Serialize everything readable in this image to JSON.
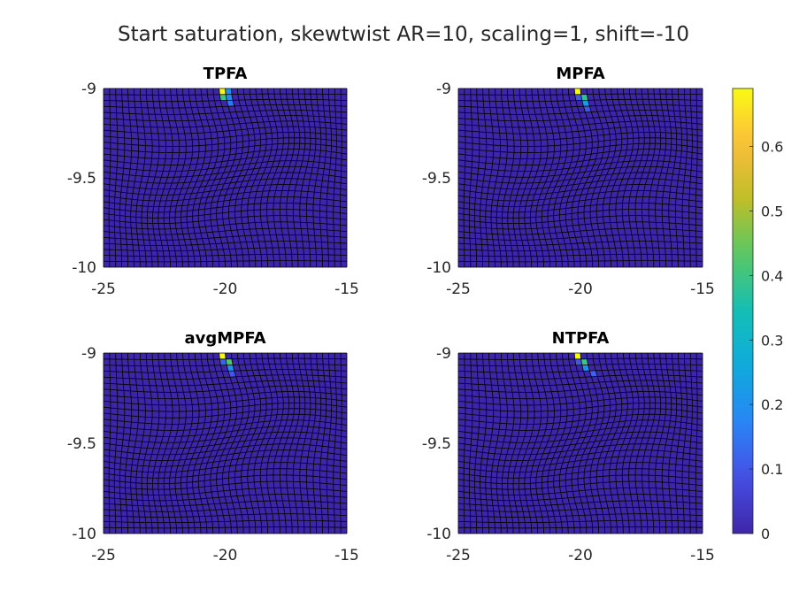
{
  "title": "Start saturation, skewtwist AR=10, scaling=1, shift=-10",
  "colors": {
    "background": "#ffffff",
    "cell_low": "#3e26a8",
    "grid_line": "#000000",
    "text": "#262626"
  },
  "chart_data": [
    {
      "type": "heatmap",
      "title": "TPFA",
      "xlim": [
        -25,
        -15
      ],
      "ylim": [
        -10,
        -9
      ],
      "xticks": [
        -25,
        -20,
        -15
      ],
      "yticks": [
        -9,
        -9.5,
        -10
      ],
      "grid": true,
      "colormap": "parula",
      "clim": [
        0,
        0.69
      ],
      "high_cells": [
        {
          "x": -20.15,
          "y": -9.01,
          "value": 0.69
        },
        {
          "x": -19.95,
          "y": -9.01,
          "value": 0.2
        },
        {
          "x": -20.05,
          "y": -9.05,
          "value": 0.4
        },
        {
          "x": -19.85,
          "y": -9.05,
          "value": 0.18
        },
        {
          "x": -19.85,
          "y": -9.09,
          "value": 0.15
        }
      ]
    },
    {
      "type": "heatmap",
      "title": "MPFA",
      "xlim": [
        -25,
        -15
      ],
      "ylim": [
        -10,
        -9
      ],
      "xticks": [
        -25,
        -20,
        -15
      ],
      "yticks": [
        -9,
        -9.5,
        -10
      ],
      "grid": true,
      "colormap": "parula",
      "clim": [
        0,
        0.69
      ],
      "high_cells": [
        {
          "x": -20.15,
          "y": -9.01,
          "value": 0.69
        },
        {
          "x": -19.95,
          "y": -9.05,
          "value": 0.38
        },
        {
          "x": -20.1,
          "y": -9.05,
          "value": 0.1
        },
        {
          "x": -19.85,
          "y": -9.09,
          "value": 0.22
        },
        {
          "x": -19.8,
          "y": -9.13,
          "value": 0.1
        }
      ]
    },
    {
      "type": "heatmap",
      "title": "avgMPFA",
      "xlim": [
        -25,
        -15
      ],
      "ylim": [
        -10,
        -9
      ],
      "xticks": [
        -25,
        -20,
        -15
      ],
      "yticks": [
        -9,
        -9.5,
        -10
      ],
      "grid": true,
      "colormap": "parula",
      "clim": [
        0,
        0.69
      ],
      "high_cells": [
        {
          "x": -20.15,
          "y": -9.01,
          "value": 0.69
        },
        {
          "x": -19.95,
          "y": -9.05,
          "value": 0.42
        },
        {
          "x": -20.1,
          "y": -9.05,
          "value": 0.12
        },
        {
          "x": -19.85,
          "y": -9.09,
          "value": 0.2
        },
        {
          "x": -19.8,
          "y": -9.13,
          "value": 0.1
        }
      ]
    },
    {
      "type": "heatmap",
      "title": "NTPFA",
      "xlim": [
        -25,
        -15
      ],
      "ylim": [
        -10,
        -9
      ],
      "xticks": [
        -25,
        -20,
        -15
      ],
      "yticks": [
        -9,
        -9.5,
        -10
      ],
      "grid": true,
      "colormap": "parula",
      "clim": [
        0,
        0.69
      ],
      "high_cells": [
        {
          "x": -20.15,
          "y": -9.01,
          "value": 0.69
        },
        {
          "x": -19.95,
          "y": -9.05,
          "value": 0.4
        },
        {
          "x": -20.1,
          "y": -9.05,
          "value": 0.1
        },
        {
          "x": -19.85,
          "y": -9.09,
          "value": 0.2
        },
        {
          "x": -19.75,
          "y": -9.13,
          "value": 0.12
        }
      ]
    }
  ],
  "colorbar": {
    "range": [
      0,
      0.69
    ],
    "ticks": [
      "0",
      "0.1",
      "0.2",
      "0.3",
      "0.4",
      "0.5",
      "0.6"
    ],
    "tick_values": [
      0,
      0.1,
      0.2,
      0.3,
      0.4,
      0.5,
      0.6
    ]
  }
}
